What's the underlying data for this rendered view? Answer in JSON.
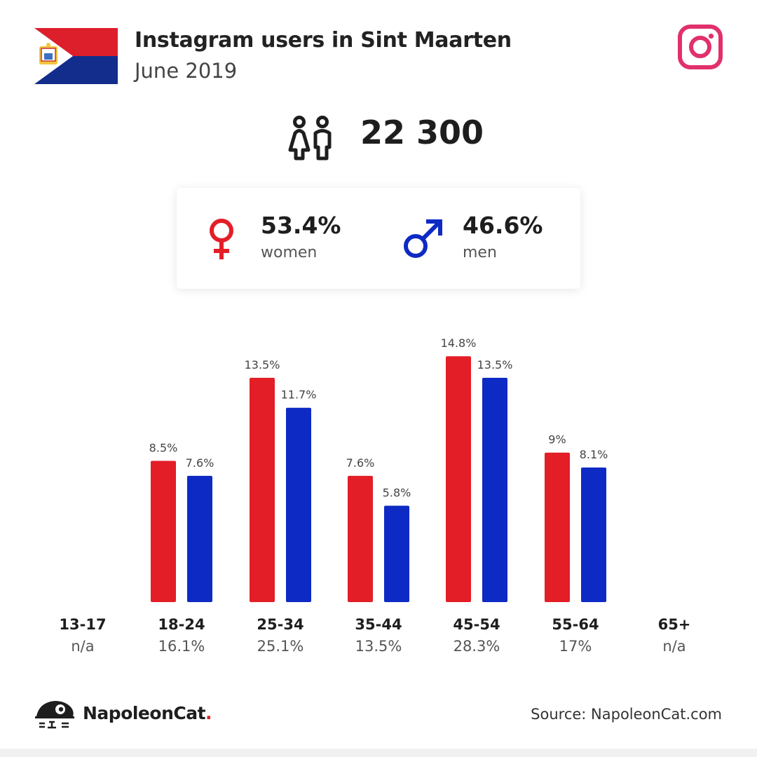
{
  "header": {
    "title": "Instagram users in Sint Maarten",
    "subtitle": "June 2019",
    "flag_icon": "sint-maarten-flag",
    "platform_icon": "instagram-icon"
  },
  "totals": {
    "users": "22 300",
    "icon": "people-icon"
  },
  "gender": {
    "women": {
      "percent": "53.4%",
      "label": "women",
      "icon": "female-symbol-icon",
      "color": "#e31e27"
    },
    "men": {
      "percent": "46.6%",
      "label": "men",
      "icon": "male-symbol-icon",
      "color": "#0e2ac4"
    }
  },
  "chart_data": {
    "type": "bar",
    "categories": [
      "13-17",
      "18-24",
      "25-34",
      "35-44",
      "45-54",
      "55-64",
      "65+"
    ],
    "category_totals": [
      "n/a",
      "16.1%",
      "25.1%",
      "13.5%",
      "28.3%",
      "17%",
      "n/a"
    ],
    "series": [
      {
        "color": "#e31e27",
        "values": [
          null,
          8.5,
          13.5,
          7.6,
          14.8,
          9.0,
          null
        ],
        "labels": [
          "",
          "8.5%",
          "13.5%",
          "7.6%",
          "14.8%",
          "9%",
          ""
        ]
      },
      {
        "color": "#0e2ac4",
        "values": [
          null,
          7.6,
          11.7,
          5.8,
          13.5,
          8.1,
          null
        ],
        "labels": [
          "",
          "7.6%",
          "11.7%",
          "5.8%",
          "13.5%",
          "8.1%",
          ""
        ]
      }
    ],
    "unit": "%",
    "grid": false
  },
  "footer": {
    "brand_name": "NapoleonCat",
    "brand_dot": ".",
    "source": "Source: NapoleonCat.com"
  }
}
